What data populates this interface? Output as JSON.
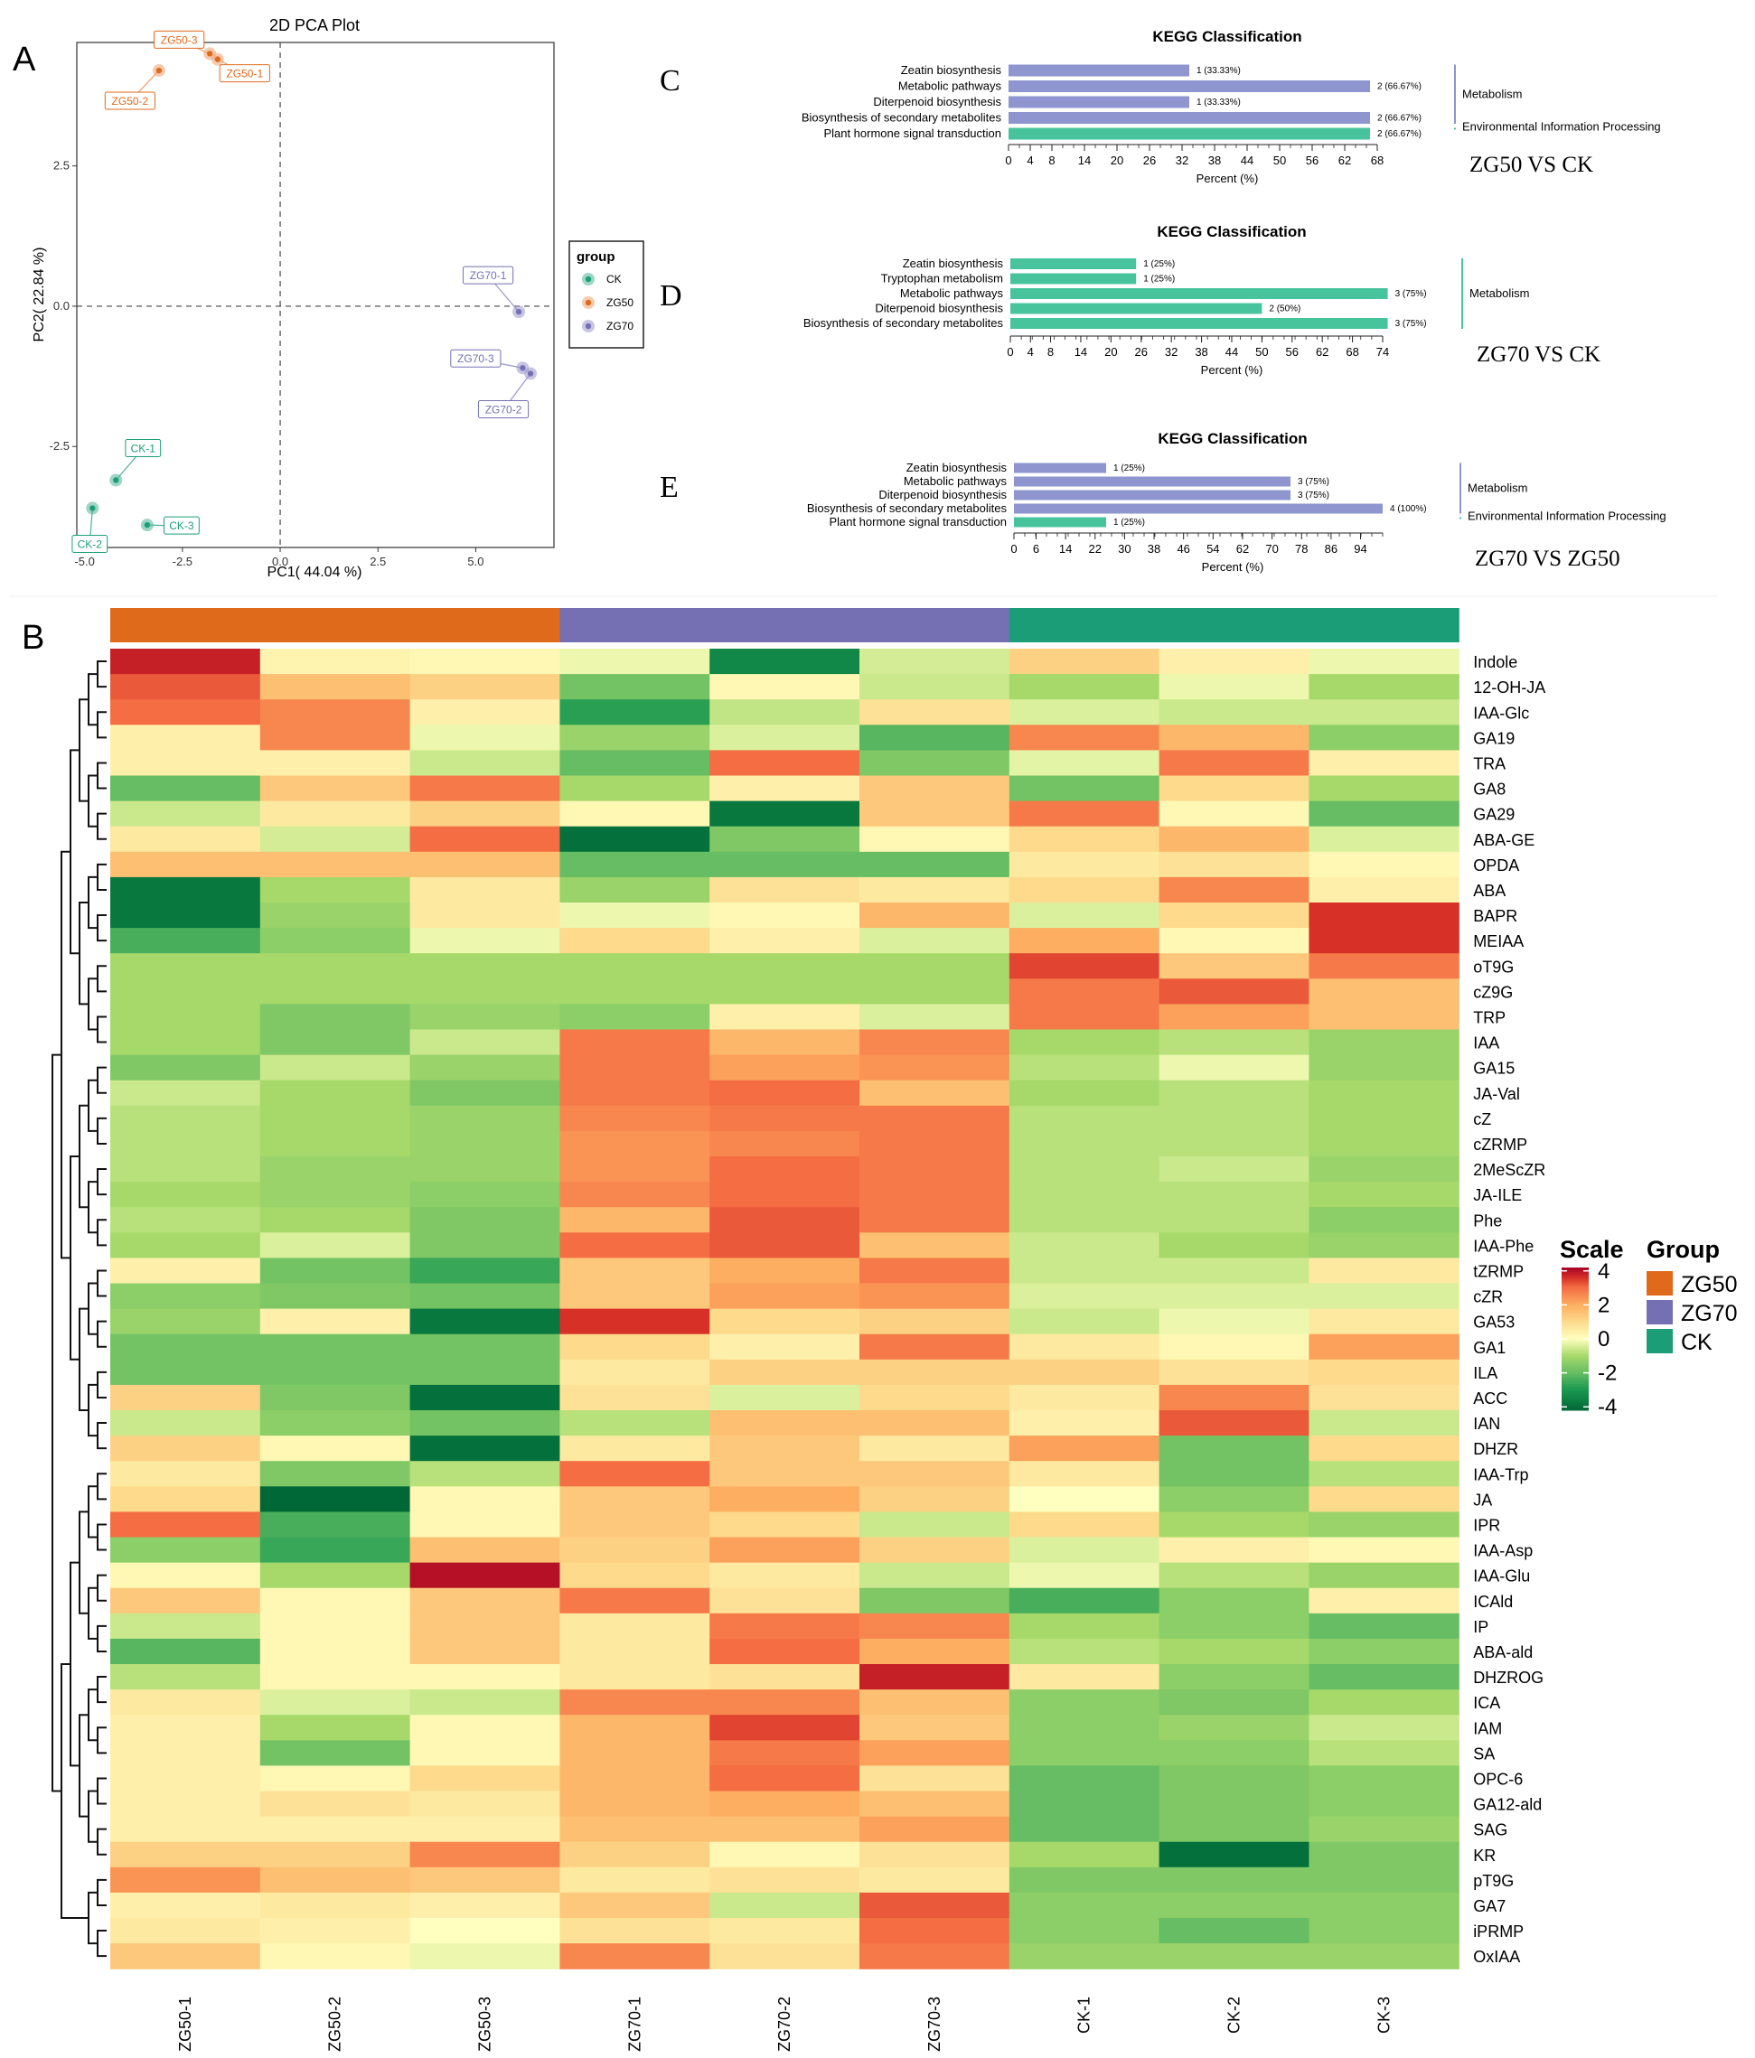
{
  "panel_labels": {
    "a": "A",
    "b": "B",
    "c": "C",
    "d": "D",
    "e": "E"
  },
  "colors": {
    "CK": "#1b9e77",
    "ZG50": "#e06a1b",
    "ZG70": "#7570b3",
    "ZG50_light": "#f0a070",
    "CK_light": "#4eb394",
    "ZG70_light": "#9a96cc",
    "kegg_purple": "#8e95cf",
    "kegg_green": "#48c49d",
    "heat_high": "#a50026",
    "heat_mid": "#ffffbf",
    "heat_low": "#006837"
  },
  "chart_data": [
    {
      "type": "scatter",
      "title": "2D PCA Plot",
      "xlabel": "PC1( 44.04 %)",
      "ylabel": "PC2( 22.84 %)",
      "xlim": [
        -5.2,
        7.0
      ],
      "ylim": [
        -4.3,
        4.7
      ],
      "xticks": [
        -5.0,
        -2.5,
        0.0,
        2.5,
        5.0
      ],
      "xtick_labels": [
        "-5.0",
        "-2.5",
        "0.0",
        "2.5",
        "5.0"
      ],
      "yticks": [
        -2.5,
        0.0,
        2.5
      ],
      "ytick_labels": [
        "-2.5",
        "0.0",
        "2.5"
      ],
      "reference_lines": {
        "x": 0,
        "y": 0,
        "style": "dashed"
      },
      "grid": false,
      "legend": {
        "title": "group",
        "placement": "right",
        "entries": [
          "CK",
          "ZG50",
          "ZG70"
        ]
      },
      "series": [
        {
          "name": "CK",
          "points": [
            {
              "label": "CK-1",
              "x": -4.2,
              "y": -3.1
            },
            {
              "label": "CK-2",
              "x": -4.8,
              "y": -3.6
            },
            {
              "label": "CK-3",
              "x": -3.4,
              "y": -3.9
            }
          ]
        },
        {
          "name": "ZG50",
          "points": [
            {
              "label": "ZG50-3",
              "x": -1.8,
              "y": 4.5
            },
            {
              "label": "ZG50-2",
              "x": -3.1,
              "y": 4.2
            },
            {
              "label": "ZG50-1",
              "x": -1.6,
              "y": 4.4
            }
          ]
        },
        {
          "name": "ZG70",
          "points": [
            {
              "label": "ZG70-1",
              "x": 6.1,
              "y": -0.1
            },
            {
              "label": "ZG70-3",
              "x": 6.2,
              "y": -1.1
            },
            {
              "label": "ZG70-2",
              "x": 6.4,
              "y": -1.2
            }
          ]
        }
      ]
    },
    {
      "type": "bar",
      "panel": "C",
      "title": "KEGG Classification",
      "comparison": "ZG50 VS CK",
      "xlabel": "Percent (%)",
      "xlim": [
        0,
        68
      ],
      "xtick_labels": [
        "0",
        "4",
        "8",
        "14",
        "20",
        "26",
        "32",
        "38",
        "44",
        "50",
        "56",
        "62",
        "68"
      ],
      "categories": [
        "Zeatin biosynthesis",
        "Metabolic pathways",
        "Diterpenoid biosynthesis",
        "Biosynthesis of secondary metabolites",
        "Plant hormone signal transduction"
      ],
      "values": [
        33.33,
        66.67,
        33.33,
        66.67,
        66.67
      ],
      "value_labels": [
        "1 (33.33%)",
        "2 (66.67%)",
        "1 (33.33%)",
        "2 (66.67%)",
        "2 (66.67%)"
      ],
      "classes": [
        "Metabolism",
        "Metabolism",
        "Metabolism",
        "Metabolism",
        "Environmental Information Processing"
      ],
      "class_labels": [
        {
          "name": "Metabolism",
          "rows": [
            0,
            3
          ]
        },
        {
          "name": "Environmental Information Processing",
          "rows": [
            4,
            4
          ]
        }
      ]
    },
    {
      "type": "bar",
      "panel": "D",
      "title": "KEGG Classification",
      "comparison": "ZG70 VS CK",
      "xlabel": "Percent (%)",
      "xlim": [
        0,
        74
      ],
      "xtick_labels": [
        "0",
        "4",
        "8",
        "14",
        "20",
        "26",
        "32",
        "38",
        "44",
        "50",
        "56",
        "62",
        "68",
        "74"
      ],
      "categories": [
        "Zeatin biosynthesis",
        "Tryptophan metabolism",
        "Metabolic pathways",
        "Diterpenoid biosynthesis",
        "Biosynthesis of secondary metabolites"
      ],
      "values": [
        25,
        25,
        75,
        50,
        75
      ],
      "value_labels": [
        "1 (25%)",
        "1 (25%)",
        "3 (75%)",
        "2 (50%)",
        "3 (75%)"
      ],
      "classes": [
        "Metabolism",
        "Metabolism",
        "Metabolism",
        "Metabolism",
        "Metabolism"
      ],
      "class_labels": [
        {
          "name": "Metabolism",
          "rows": [
            0,
            4
          ]
        }
      ]
    },
    {
      "type": "bar",
      "panel": "E",
      "title": "KEGG Classification",
      "comparison": "ZG70 VS ZG50",
      "xlabel": "Percent (%)",
      "xlim": [
        0,
        100
      ],
      "xtick_labels": [
        "0",
        "6",
        "14",
        "22",
        "30",
        "38",
        "46",
        "54",
        "62",
        "70",
        "78",
        "86",
        "94"
      ],
      "xtick_values": [
        0,
        6,
        14,
        22,
        30,
        38,
        46,
        54,
        62,
        70,
        78,
        86,
        94
      ],
      "categories": [
        "Zeatin biosynthesis",
        "Metabolic pathways",
        "Diterpenoid biosynthesis",
        "Biosynthesis of secondary metabolites",
        "Plant hormone signal transduction"
      ],
      "values": [
        25,
        75,
        75,
        100,
        25
      ],
      "value_labels": [
        "1 (25%)",
        "3 (75%)",
        "3 (75%)",
        "4 (100%)",
        "1 (25%)"
      ],
      "classes": [
        "Metabolism",
        "Metabolism",
        "Metabolism",
        "Metabolism",
        "Environmental Information Processing"
      ],
      "class_labels": [
        {
          "name": "Metabolism",
          "rows": [
            0,
            3
          ]
        },
        {
          "name": "Environmental Information Processing",
          "rows": [
            4,
            4
          ]
        }
      ]
    },
    {
      "type": "heatmap",
      "panel": "B",
      "columns": [
        "ZG50-1",
        "ZG50-2",
        "ZG50-3",
        "ZG70-1",
        "ZG70-2",
        "ZG70-3",
        "CK-1",
        "CK-2",
        "CK-3"
      ],
      "column_groups": [
        "ZG50",
        "ZG50",
        "ZG50",
        "ZG70",
        "ZG70",
        "ZG70",
        "CK",
        "CK",
        "CK"
      ],
      "rows": [
        "Indole",
        "12-OH-JA",
        "IAA-Glc",
        "GA19",
        "TRA",
        "GA8",
        "GA29",
        "ABA-GE",
        "OPDA",
        "ABA",
        "BAPR",
        "MEIAA",
        "oT9G",
        "cZ9G",
        "TRP",
        "IAA",
        "GA15",
        "JA-Val",
        "cZ",
        "cZRMP",
        "2MeScZR",
        "JA-ILE",
        "Phe",
        "IAA-Phe",
        "tZRMP",
        "cZR",
        "GA53",
        "GA1",
        "ILA",
        "ACC",
        "IAN",
        "DHZR",
        "IAA-Trp",
        "JA",
        "IPR",
        "IAA-Asp",
        "IAA-Glu",
        "ICAld",
        "IP",
        "ABA-ald",
        "DHZROG",
        "ICA",
        "IAM",
        "SA",
        "OPC-6",
        "GA12-ald",
        "SAG",
        "KR",
        "pT9G",
        "GA7",
        "iPRMP",
        "OxIAA"
      ],
      "values": [
        [
          3.8,
          0.3,
          0.2,
          -0.2,
          -3.4,
          -0.5,
          1.2,
          0.4,
          -0.2
        ],
        [
          3.2,
          1.6,
          1.2,
          -1.8,
          0.2,
          -0.6,
          -1.0,
          -0.2,
          -1.0
        ],
        [
          3.0,
          2.6,
          0.4,
          -2.8,
          -0.7,
          0.8,
          -0.4,
          -0.6,
          -0.6
        ],
        [
          0.4,
          2.6,
          -0.2,
          -1.2,
          -0.4,
          -2.2,
          2.6,
          1.8,
          -1.4
        ],
        [
          0.4,
          0.4,
          -0.6,
          -2.0,
          3.0,
          -1.6,
          -0.3,
          2.8,
          0.4
        ],
        [
          -2.0,
          1.4,
          2.8,
          -1.0,
          0.4,
          1.4,
          -1.8,
          1.0,
          -1.0
        ],
        [
          -0.6,
          0.6,
          1.2,
          0.2,
          -3.8,
          1.4,
          2.8,
          0.2,
          -2.0
        ],
        [
          0.6,
          -0.5,
          3.0,
          -4.0,
          -1.6,
          0.2,
          1.0,
          1.8,
          -0.4
        ],
        [
          1.6,
          1.6,
          1.6,
          -2.0,
          -2.0,
          -2.0,
          0.6,
          0.8,
          0.2
        ],
        [
          -3.8,
          -1.0,
          0.6,
          -1.2,
          0.8,
          0.6,
          1.0,
          2.6,
          0.4
        ],
        [
          -3.8,
          -1.2,
          0.6,
          -0.2,
          0.2,
          1.8,
          -0.4,
          1.0,
          3.6
        ],
        [
          -2.4,
          -1.4,
          -0.2,
          1.0,
          0.4,
          -0.4,
          2.0,
          0.2,
          3.6
        ],
        [
          -1.0,
          -1.0,
          -1.0,
          -1.0,
          -1.0,
          -1.0,
          3.4,
          1.4,
          2.8
        ],
        [
          -1.0,
          -1.0,
          -1.0,
          -1.0,
          -1.0,
          -1.0,
          2.8,
          3.2,
          1.6
        ],
        [
          -1.0,
          -1.6,
          -1.2,
          -1.4,
          0.4,
          -0.4,
          2.8,
          2.2,
          1.6
        ],
        [
          -1.0,
          -1.6,
          -0.6,
          2.8,
          1.8,
          2.6,
          -1.0,
          -0.8,
          -1.2
        ],
        [
          -1.6,
          -0.6,
          -1.2,
          2.8,
          2.2,
          2.4,
          -0.8,
          -0.2,
          -1.2
        ],
        [
          -0.6,
          -1.0,
          -1.6,
          2.8,
          3.0,
          1.6,
          -1.0,
          -0.8,
          -1.0
        ],
        [
          -0.8,
          -1.0,
          -1.2,
          2.6,
          2.8,
          2.8,
          -0.8,
          -0.8,
          -1.0
        ],
        [
          -0.8,
          -1.0,
          -1.2,
          2.4,
          2.6,
          2.8,
          -0.8,
          -0.8,
          -1.0
        ],
        [
          -0.8,
          -1.2,
          -1.2,
          2.4,
          3.0,
          2.8,
          -0.8,
          -0.6,
          -1.2
        ],
        [
          -1.0,
          -1.2,
          -1.4,
          2.6,
          3.0,
          2.8,
          -0.8,
          -0.8,
          -1.0
        ],
        [
          -0.8,
          -1.0,
          -1.6,
          1.8,
          3.2,
          2.8,
          -0.8,
          -0.8,
          -1.4
        ],
        [
          -1.0,
          -0.4,
          -1.6,
          3.0,
          3.2,
          1.6,
          -0.6,
          -1.0,
          -1.2
        ],
        [
          0.4,
          -1.8,
          -2.6,
          1.4,
          2.0,
          2.8,
          -0.6,
          -0.6,
          0.6
        ],
        [
          -1.4,
          -1.6,
          -1.8,
          1.4,
          2.2,
          2.4,
          -0.4,
          -0.4,
          -0.4
        ],
        [
          -1.2,
          0.4,
          -3.8,
          3.6,
          1.0,
          1.2,
          -0.6,
          -0.2,
          0.6
        ],
        [
          -1.8,
          -1.8,
          -1.8,
          1.0,
          0.4,
          2.8,
          0.6,
          0.2,
          2.2
        ],
        [
          -1.8,
          -1.8,
          -1.8,
          0.6,
          1.2,
          1.2,
          1.2,
          0.8,
          1.0
        ],
        [
          1.2,
          -1.6,
          -4.0,
          0.8,
          -0.4,
          1.0,
          0.6,
          2.6,
          0.8
        ],
        [
          -0.6,
          -1.4,
          -1.8,
          -0.8,
          1.6,
          1.6,
          0.4,
          3.2,
          -0.6
        ],
        [
          1.2,
          0.2,
          -4.0,
          0.6,
          1.4,
          0.6,
          2.2,
          -1.8,
          1.0
        ],
        [
          0.6,
          -1.6,
          -0.8,
          3.0,
          1.4,
          1.4,
          0.6,
          -1.8,
          -0.8
        ],
        [
          1.0,
          -4.2,
          0.2,
          1.4,
          2.0,
          1.2,
          0.0,
          -1.4,
          1.0
        ],
        [
          3.0,
          -2.4,
          0.2,
          1.4,
          1.0,
          -0.6,
          1.0,
          -1.0,
          -1.2
        ],
        [
          -1.4,
          -2.6,
          1.6,
          1.2,
          2.2,
          1.2,
          -0.4,
          0.4,
          0.2
        ],
        [
          0.2,
          -1.0,
          4.0,
          1.0,
          0.6,
          -0.6,
          -0.2,
          -0.8,
          -1.2
        ],
        [
          1.4,
          0.2,
          1.4,
          2.8,
          0.8,
          -1.6,
          -2.4,
          -1.4,
          0.4
        ],
        [
          -0.6,
          0.2,
          1.4,
          0.6,
          2.8,
          2.6,
          -1.0,
          -1.4,
          -2.0
        ],
        [
          -2.2,
          0.2,
          1.4,
          0.6,
          3.0,
          2.0,
          -0.8,
          -1.0,
          -1.4
        ],
        [
          -0.8,
          0.2,
          0.2,
          0.6,
          0.8,
          3.8,
          0.6,
          -1.4,
          -2.0
        ],
        [
          0.6,
          -0.4,
          -0.6,
          2.6,
          2.6,
          1.6,
          -1.4,
          -1.6,
          -1.0
        ],
        [
          0.4,
          -1.0,
          0.2,
          1.8,
          3.4,
          1.4,
          -1.4,
          -1.2,
          -0.6
        ],
        [
          0.4,
          -1.8,
          0.2,
          1.8,
          2.8,
          2.2,
          -1.4,
          -1.4,
          -0.8
        ],
        [
          0.4,
          0.2,
          1.0,
          1.8,
          3.0,
          0.8,
          -2.0,
          -1.6,
          -1.4
        ],
        [
          0.4,
          0.8,
          0.6,
          1.8,
          2.0,
          1.6,
          -2.0,
          -1.6,
          -1.4
        ],
        [
          0.4,
          0.4,
          0.4,
          1.6,
          1.6,
          2.2,
          -2.0,
          -1.6,
          -1.2
        ],
        [
          1.2,
          1.2,
          2.6,
          1.2,
          0.2,
          0.8,
          -1.0,
          -4.0,
          -1.6
        ],
        [
          2.4,
          1.6,
          1.4,
          0.6,
          0.8,
          0.6,
          -1.6,
          -1.6,
          -1.6
        ],
        [
          0.4,
          0.6,
          0.4,
          1.4,
          -0.6,
          3.2,
          -1.4,
          -1.4,
          -1.4
        ],
        [
          0.6,
          0.4,
          0.0,
          0.8,
          0.6,
          3.0,
          -1.4,
          -2.0,
          -1.4
        ],
        [
          1.4,
          0.2,
          -0.2,
          2.6,
          0.8,
          2.8,
          -1.2,
          -1.2,
          -1.2
        ]
      ],
      "legend_scale": {
        "title": "Scale",
        "ticks": [
          4,
          2,
          0,
          -2,
          -4
        ],
        "range": [
          -4.2,
          4.2
        ]
      },
      "legend_group": {
        "title": "Group",
        "entries": [
          "ZG50",
          "ZG70",
          "CK"
        ]
      },
      "row_dendrogram": true
    }
  ]
}
